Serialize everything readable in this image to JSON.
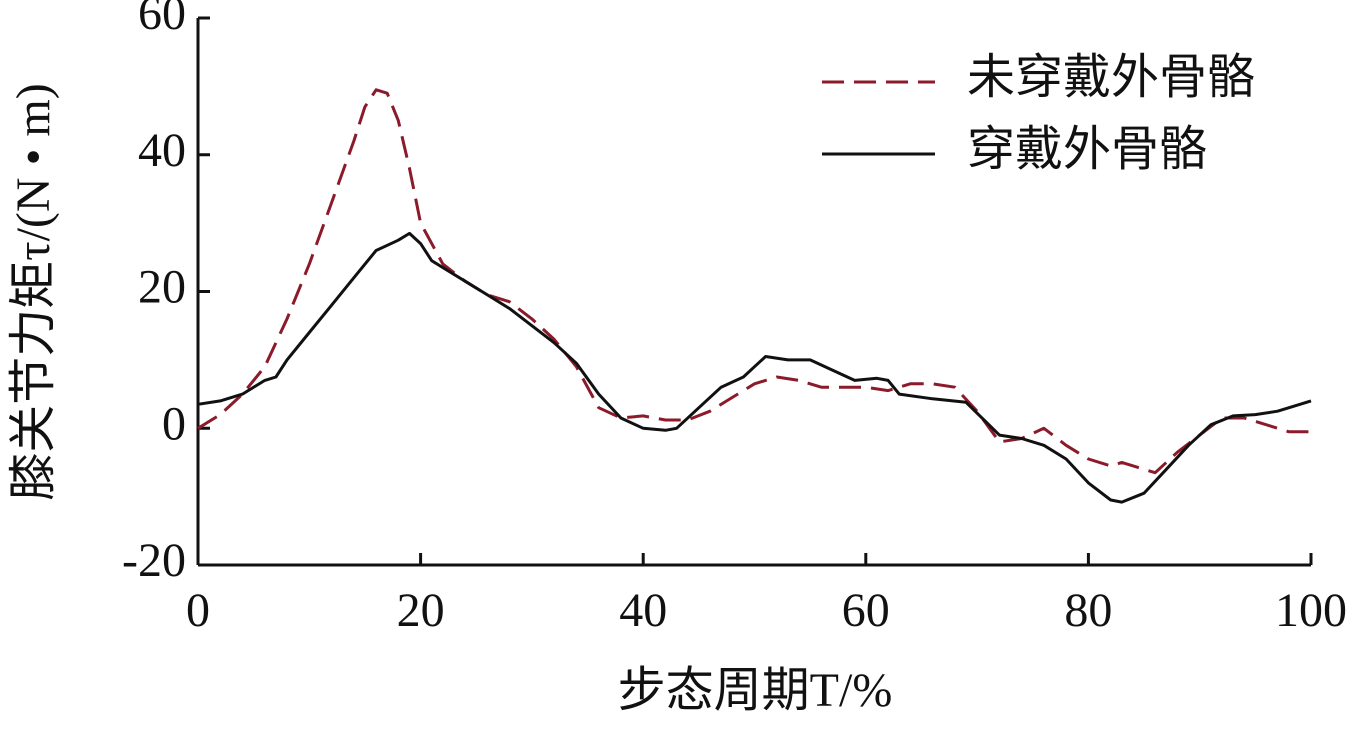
{
  "chart_data": {
    "type": "line",
    "xlabel": "步态周期T/%",
    "ylabel": "膝关节力矩τ/(N • m)",
    "xlim": [
      0,
      100
    ],
    "xticks": [
      0,
      20,
      40,
      60,
      80,
      100
    ],
    "ylim": [
      -20,
      60
    ],
    "yticks": [
      -20,
      0,
      20,
      40,
      60
    ],
    "legend": "upper right",
    "series": [
      {
        "name": "未穿戴外骨骼",
        "color": "#8b1a2a",
        "dash": true,
        "x": [
          0,
          2,
          4,
          6,
          8,
          10,
          12,
          14,
          15,
          16,
          17,
          18,
          19,
          20,
          22,
          24,
          26,
          28,
          30,
          32,
          34,
          36,
          38,
          40,
          42,
          44,
          46,
          48,
          50,
          52,
          54,
          56,
          58,
          60,
          62,
          64,
          66,
          68,
          70,
          72,
          74,
          76,
          78,
          80,
          82,
          83,
          85,
          86,
          88,
          90,
          92,
          94,
          96,
          98,
          100
        ],
        "values": [
          0,
          2,
          5,
          9,
          16,
          24,
          33,
          42,
          47,
          49.5,
          49,
          45,
          38,
          30,
          24,
          21.5,
          19.5,
          18.5,
          16,
          13,
          9,
          3,
          1.5,
          1.8,
          1.2,
          1.2,
          2.5,
          4.5,
          6.5,
          7.5,
          7,
          6,
          6,
          6,
          5.5,
          6.5,
          6.5,
          6,
          2.5,
          -2,
          -1.5,
          0,
          -2.5,
          -4.5,
          -5.5,
          -5,
          -6,
          -6.5,
          -3.5,
          -1,
          1.5,
          1.5,
          0.5,
          -0.5,
          -0.5
        ]
      },
      {
        "name": "穿戴外骨骼",
        "color": "#111111",
        "dash": false,
        "x": [
          0,
          2,
          4,
          6,
          7,
          8,
          10,
          12,
          14,
          16,
          18,
          19,
          20,
          21,
          22,
          24,
          26,
          28,
          30,
          32,
          34,
          36,
          38,
          40,
          42,
          43,
          45,
          47,
          49,
          50,
          51,
          53,
          55,
          57,
          59,
          61,
          62,
          63,
          66,
          69,
          72,
          74,
          76,
          78,
          80,
          82,
          83,
          85,
          87,
          89,
          91,
          93,
          95,
          97,
          100
        ],
        "values": [
          3.5,
          4,
          5,
          7,
          7.5,
          10,
          14,
          18,
          22,
          26,
          27.5,
          28.5,
          27,
          24.5,
          23.5,
          21.5,
          19.5,
          17.5,
          15,
          12.5,
          9.5,
          5,
          1.5,
          0,
          -0.3,
          0,
          3,
          6,
          7.5,
          9,
          10.5,
          10,
          10,
          8.5,
          7,
          7.3,
          7,
          5,
          4.3,
          3.8,
          -1,
          -1.5,
          -2.5,
          -4.5,
          -8,
          -10.5,
          -10.8,
          -9.5,
          -6,
          -2.5,
          0.5,
          1.8,
          2,
          2.5,
          4
        ]
      }
    ]
  }
}
